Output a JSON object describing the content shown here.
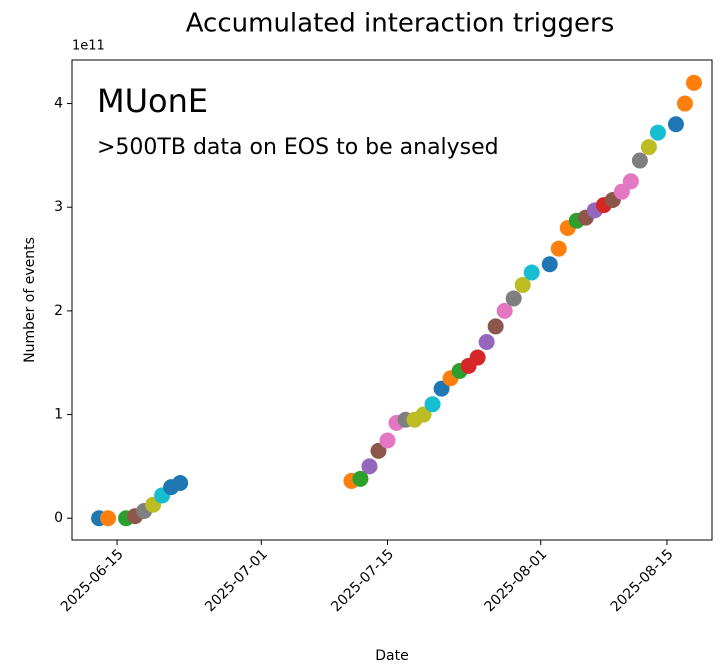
{
  "chart_data": {
    "type": "scatter",
    "title": "Accumulated interaction triggers",
    "x_label": "Date",
    "y_label": "Number of events",
    "y_offset_label": "1e11",
    "annotation": "MUonE",
    "annotation_color": "#a0421a",
    "subtitle": ">500TB data on EOS to be analysed",
    "xlim": [
      "2025-06-10",
      "2025-08-20"
    ],
    "xticks": [
      "2025-06-15",
      "2025-07-01",
      "2025-07-15",
      "2025-08-01",
      "2025-08-15"
    ],
    "ylim": [
      -0.21,
      4.42
    ],
    "yticks": [
      0,
      1,
      2,
      3,
      4
    ],
    "series": [
      {
        "color": "#1f77b4",
        "x": [
          "2025-06-13"
        ],
        "values": [
          0
        ]
      },
      {
        "color": "#ff7f0e",
        "x": [
          "2025-06-14"
        ],
        "values": [
          0
        ]
      },
      {
        "color": "#2ca02c",
        "x": [
          "2025-06-16"
        ],
        "values": [
          0
        ]
      },
      {
        "color": "#8c564b",
        "x": [
          "2025-06-17"
        ],
        "values": [
          0.02
        ]
      },
      {
        "color": "#7f7f7f",
        "x": [
          "2025-06-18"
        ],
        "values": [
          0.07
        ]
      },
      {
        "color": "#bcbd22",
        "x": [
          "2025-06-19"
        ],
        "values": [
          0.13
        ]
      },
      {
        "color": "#17becf",
        "x": [
          "2025-06-20"
        ],
        "values": [
          0.22
        ]
      },
      {
        "color": "#1f77b4",
        "x": [
          "2025-06-21",
          "2025-06-22"
        ],
        "values": [
          0.3,
          0.34
        ]
      },
      {
        "color": "#ff7f0e",
        "x": [
          "2025-07-11"
        ],
        "values": [
          0.36
        ]
      },
      {
        "color": "#2ca02c",
        "x": [
          "2025-07-12"
        ],
        "values": [
          0.38
        ]
      },
      {
        "color": "#9467bd",
        "x": [
          "2025-07-13"
        ],
        "values": [
          0.5
        ]
      },
      {
        "color": "#8c564b",
        "x": [
          "2025-07-14"
        ],
        "values": [
          0.65
        ]
      },
      {
        "color": "#e377c2",
        "x": [
          "2025-07-15",
          "2025-07-16"
        ],
        "values": [
          0.75,
          0.92
        ]
      },
      {
        "color": "#7f7f7f",
        "x": [
          "2025-07-17"
        ],
        "values": [
          0.95
        ]
      },
      {
        "color": "#bcbd22",
        "x": [
          "2025-07-18",
          "2025-07-19"
        ],
        "values": [
          0.95,
          1.0
        ]
      },
      {
        "color": "#17becf",
        "x": [
          "2025-07-20"
        ],
        "values": [
          1.1
        ]
      },
      {
        "color": "#1f77b4",
        "x": [
          "2025-07-21"
        ],
        "values": [
          1.25
        ]
      },
      {
        "color": "#ff7f0e",
        "x": [
          "2025-07-22"
        ],
        "values": [
          1.35
        ]
      },
      {
        "color": "#2ca02c",
        "x": [
          "2025-07-23"
        ],
        "values": [
          1.42
        ]
      },
      {
        "color": "#d62728",
        "x": [
          "2025-07-24",
          "2025-07-25"
        ],
        "values": [
          1.47,
          1.55
        ]
      },
      {
        "color": "#9467bd",
        "x": [
          "2025-07-26"
        ],
        "values": [
          1.7
        ]
      },
      {
        "color": "#8c564b",
        "x": [
          "2025-07-27"
        ],
        "values": [
          1.85
        ]
      },
      {
        "color": "#e377c2",
        "x": [
          "2025-07-28"
        ],
        "values": [
          2.0
        ]
      },
      {
        "color": "#7f7f7f",
        "x": [
          "2025-07-29"
        ],
        "values": [
          2.12
        ]
      },
      {
        "color": "#bcbd22",
        "x": [
          "2025-07-30"
        ],
        "values": [
          2.25
        ]
      },
      {
        "color": "#17becf",
        "x": [
          "2025-07-31"
        ],
        "values": [
          2.37
        ]
      },
      {
        "color": "#1f77b4",
        "x": [
          "2025-08-02"
        ],
        "values": [
          2.45
        ]
      },
      {
        "color": "#ff7f0e",
        "x": [
          "2025-08-03",
          "2025-08-04"
        ],
        "values": [
          2.6,
          2.8
        ]
      },
      {
        "color": "#2ca02c",
        "x": [
          "2025-08-05"
        ],
        "values": [
          2.87
        ]
      },
      {
        "color": "#8c564b",
        "x": [
          "2025-08-06"
        ],
        "values": [
          2.9
        ]
      },
      {
        "color": "#9467bd",
        "x": [
          "2025-08-07"
        ],
        "values": [
          2.97
        ]
      },
      {
        "color": "#d62728",
        "x": [
          "2025-08-08"
        ],
        "values": [
          3.02
        ]
      },
      {
        "color": "#8c564b",
        "x": [
          "2025-08-09"
        ],
        "values": [
          3.07
        ]
      },
      {
        "color": "#e377c2",
        "x": [
          "2025-08-10",
          "2025-08-11"
        ],
        "values": [
          3.15,
          3.25
        ]
      },
      {
        "color": "#7f7f7f",
        "x": [
          "2025-08-12"
        ],
        "values": [
          3.45
        ]
      },
      {
        "color": "#bcbd22",
        "x": [
          "2025-08-13"
        ],
        "values": [
          3.58
        ]
      },
      {
        "color": "#17becf",
        "x": [
          "2025-08-14"
        ],
        "values": [
          3.72
        ]
      },
      {
        "color": "#1f77b4",
        "x": [
          "2025-08-16"
        ],
        "values": [
          3.8
        ]
      },
      {
        "color": "#ff7f0e",
        "x": [
          "2025-08-17",
          "2025-08-18"
        ],
        "values": [
          4.0,
          4.2
        ]
      }
    ]
  }
}
